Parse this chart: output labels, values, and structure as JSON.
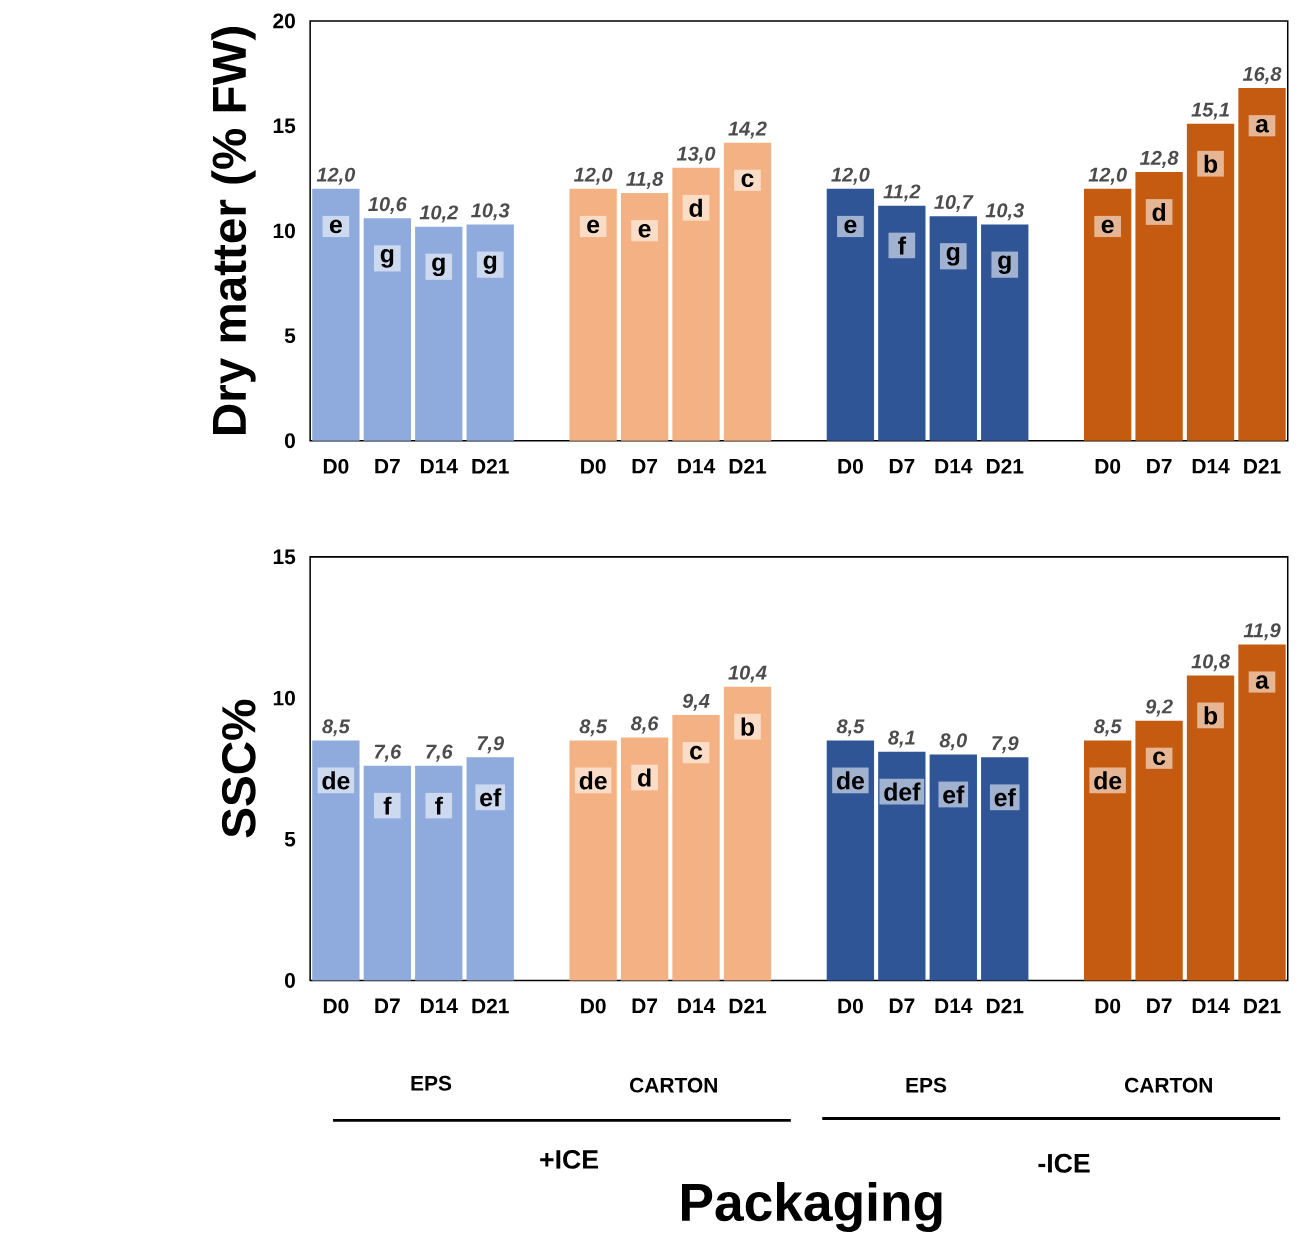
{
  "chart_data": [
    {
      "type": "bar",
      "ylabel": "Dry matter (% FW)",
      "categories": [
        "D0",
        "D7",
        "D14",
        "D21",
        null,
        "D0",
        "D7",
        "D14",
        "D21",
        null,
        "D0",
        "D7",
        "D14",
        "D21",
        null,
        "D0",
        "D7",
        "D14",
        "D21"
      ],
      "values": [
        12.0,
        10.6,
        10.2,
        10.3,
        null,
        12.0,
        11.8,
        13.0,
        14.2,
        null,
        12.0,
        11.2,
        10.7,
        10.3,
        null,
        12.0,
        12.8,
        15.1,
        16.8
      ],
      "colors": [
        "#8faadc",
        "#8faadc",
        "#8faadc",
        "#8faadc",
        null,
        "#f4b183",
        "#f4b183",
        "#f4b183",
        "#f4b183",
        null,
        "#2f5597",
        "#2f5597",
        "#2f5597",
        "#2f5597",
        null,
        "#c55a11",
        "#c55a11",
        "#c55a11",
        "#c55a11"
      ],
      "value_labels": [
        "12,0",
        "10,6",
        "10,2",
        "10,3",
        null,
        "12,0",
        "11,8",
        "13,0",
        "14,2",
        null,
        "12,0",
        "11,2",
        "10,7",
        "10,3",
        null,
        "12,0",
        "12,8",
        "15,1",
        "16,8"
      ],
      "annotations": [
        "e",
        "g",
        "g",
        "g",
        "e",
        "e",
        "d",
        "c",
        "e",
        "f",
        "g",
        "g",
        "e",
        "d",
        "b",
        "a"
      ],
      "ylim": [
        0,
        20
      ],
      "yticks": [
        0,
        5,
        10,
        15,
        20
      ]
    },
    {
      "type": "bar",
      "ylabel": "SSC%",
      "categories": [
        "D0",
        "D7",
        "D14",
        "D21",
        null,
        "D0",
        "D7",
        "D14",
        "D21",
        null,
        "D0",
        "D7",
        "D14",
        "D21",
        null,
        "D0",
        "D7",
        "D14",
        "D21"
      ],
      "values": [
        8.5,
        7.6,
        7.6,
        7.9,
        null,
        8.5,
        8.6,
        9.4,
        10.4,
        null,
        8.5,
        8.1,
        8.0,
        7.9,
        null,
        8.5,
        9.2,
        10.8,
        11.9
      ],
      "colors": [
        "#8faadc",
        "#8faadc",
        "#8faadc",
        "#8faadc",
        null,
        "#f4b183",
        "#f4b183",
        "#f4b183",
        "#f4b183",
        null,
        "#2f5597",
        "#2f5597",
        "#2f5597",
        "#2f5597",
        null,
        "#c55a11",
        "#c55a11",
        "#c55a11",
        "#c55a11"
      ],
      "value_labels": [
        "8,5",
        "7,6",
        "7,6",
        "7,9",
        null,
        "8,5",
        "8,6",
        "9,4",
        "10,4",
        null,
        "8,5",
        "8,1",
        "8,0",
        "7,9",
        null,
        "8,5",
        "9,2",
        "10,8",
        "11,9"
      ],
      "annotations": [
        "de",
        "f",
        "f",
        "ef",
        "de",
        "d",
        "c",
        "b",
        "de",
        "def",
        "ef",
        "ef",
        "de",
        "c",
        "b",
        "a"
      ],
      "ylim": [
        0,
        15
      ],
      "yticks": [
        0,
        5,
        10,
        15
      ]
    },
    {
      "type": "other",
      "xlabel": "Packaging",
      "annotations": [
        "EPS",
        "CARTON",
        "EPS",
        "CARTON",
        "+ICE",
        "-ICE"
      ]
    }
  ]
}
